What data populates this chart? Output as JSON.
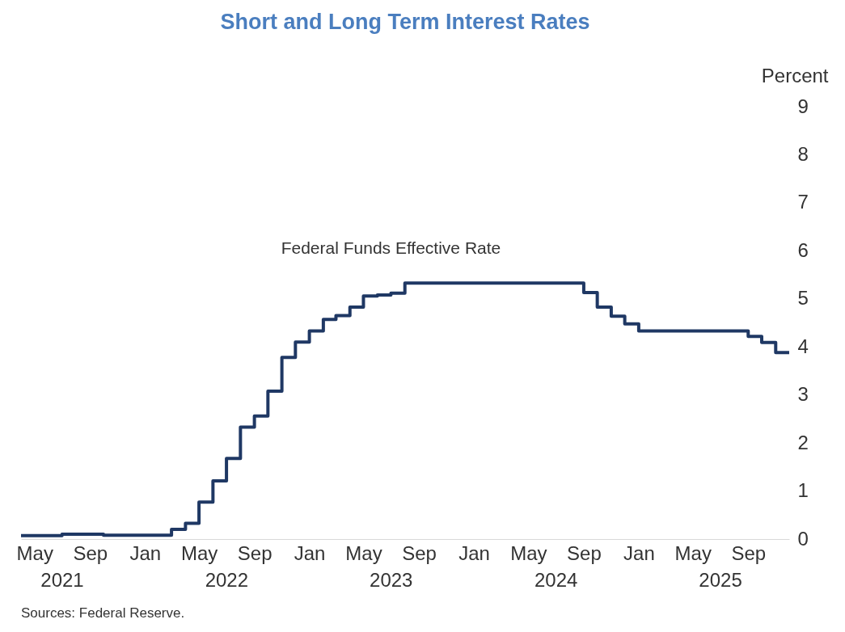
{
  "chart_data": {
    "type": "step",
    "title": "Short and Long Term Interest Rates",
    "ylabel": "Percent",
    "x": [
      "2021-04",
      "2021-07",
      "2021-10",
      "2022-01",
      "2022-03",
      "2022-04",
      "2022-05",
      "2022-06",
      "2022-07",
      "2022-08",
      "2022-09",
      "2022-10",
      "2022-11",
      "2022-12",
      "2023-01",
      "2023-02",
      "2023-03",
      "2023-04",
      "2023-05",
      "2023-06",
      "2023-07",
      "2023-08",
      "2024-01",
      "2024-08",
      "2024-09",
      "2024-10",
      "2024-11",
      "2024-12",
      "2025-01",
      "2025-08",
      "2025-09",
      "2025-10",
      "2025-11",
      "2025-12"
    ],
    "series": [
      {
        "name": "Federal Funds Effective Rate",
        "color": "#1f3864",
        "values": [
          0.07,
          0.1,
          0.08,
          0.08,
          0.2,
          0.33,
          0.77,
          1.21,
          1.68,
          2.33,
          2.56,
          3.08,
          3.78,
          4.1,
          4.33,
          4.57,
          4.65,
          4.83,
          5.06,
          5.08,
          5.12,
          5.33,
          5.33,
          5.33,
          5.13,
          4.83,
          4.64,
          4.48,
          4.33,
          4.33,
          4.22,
          4.09,
          3.88,
          3.88
        ]
      }
    ],
    "xticks": [
      {
        "value": "2021-05",
        "label": "May"
      },
      {
        "value": "2021-09",
        "label": "Sep"
      },
      {
        "value": "2022-01",
        "label": "Jan"
      },
      {
        "value": "2022-05",
        "label": "May"
      },
      {
        "value": "2022-09",
        "label": "Sep"
      },
      {
        "value": "2023-01",
        "label": "Jan"
      },
      {
        "value": "2023-05",
        "label": "May"
      },
      {
        "value": "2023-09",
        "label": "Sep"
      },
      {
        "value": "2024-01",
        "label": "Jan"
      },
      {
        "value": "2024-05",
        "label": "May"
      },
      {
        "value": "2024-09",
        "label": "Sep"
      },
      {
        "value": "2025-01",
        "label": "Jan"
      },
      {
        "value": "2025-05",
        "label": "May"
      },
      {
        "value": "2025-09",
        "label": "Sep"
      }
    ],
    "ylim": [
      0,
      9
    ],
    "yticks": [
      0,
      1,
      2,
      3,
      4,
      5,
      6,
      7,
      8,
      9
    ],
    "grid": false,
    "xlim": [
      "2021-04",
      "2025-12"
    ],
    "annotations": [
      "2021",
      "2022",
      "2023",
      "2024",
      "2025",
      "Sources: Federal Reserve."
    ]
  }
}
